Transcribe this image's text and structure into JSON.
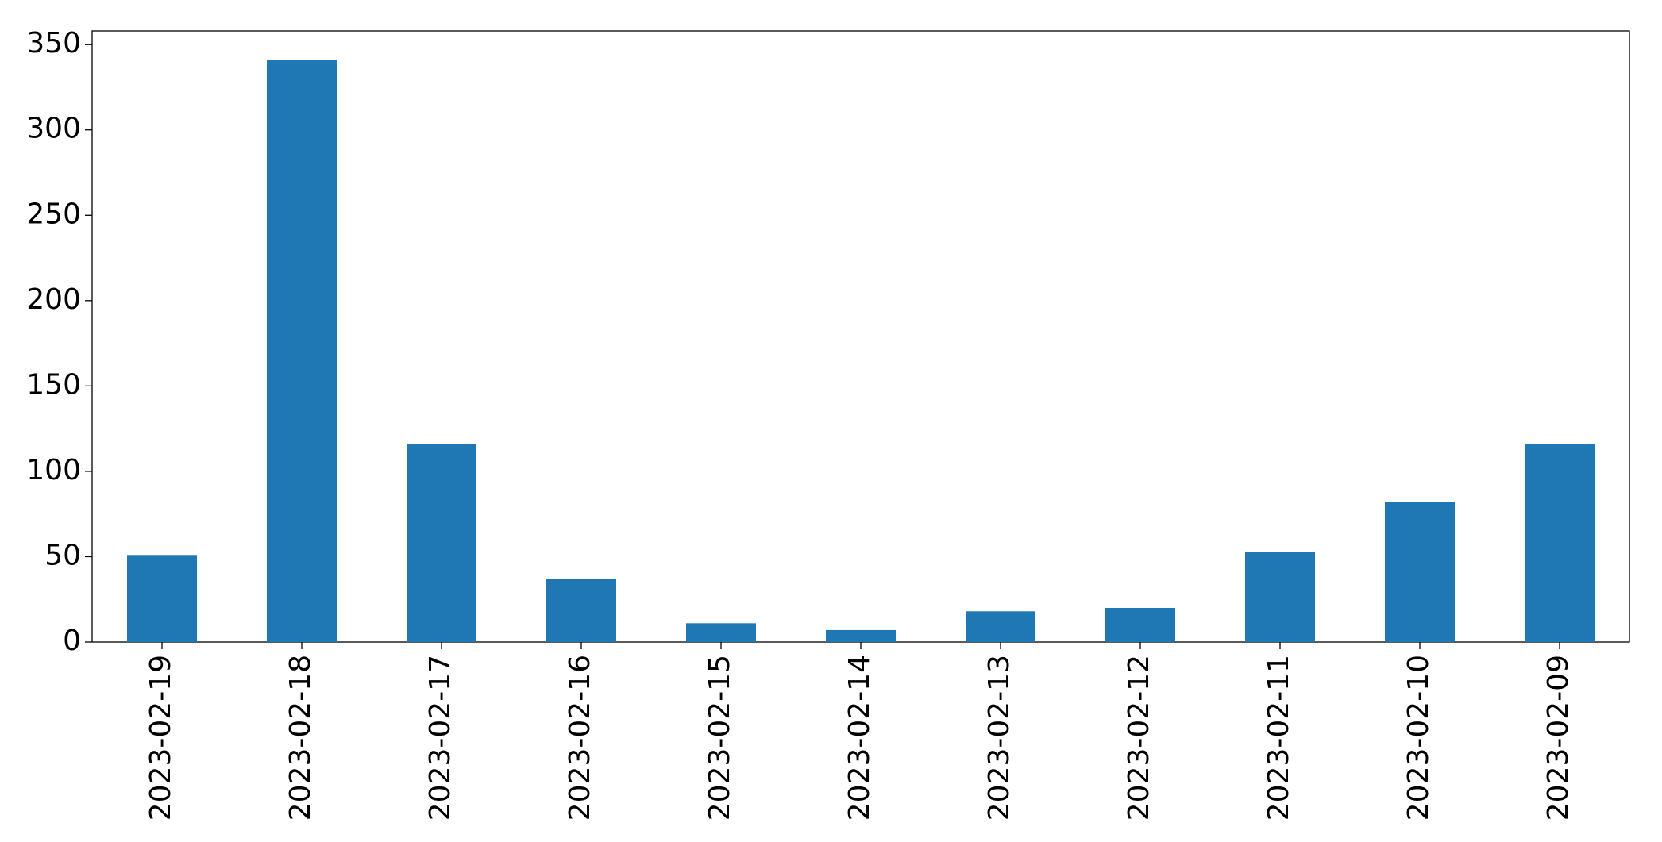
{
  "chart_data": {
    "type": "bar",
    "categories": [
      "2023-02-19",
      "2023-02-18",
      "2023-02-17",
      "2023-02-16",
      "2023-02-15",
      "2023-02-14",
      "2023-02-13",
      "2023-02-12",
      "2023-02-11",
      "2023-02-10",
      "2023-02-09"
    ],
    "values": [
      51,
      341,
      116,
      37,
      11,
      7,
      18,
      20,
      53,
      82,
      116
    ],
    "color": "#1f77b4",
    "ylim": [
      0,
      358
    ],
    "yticks": [
      0,
      50,
      100,
      150,
      200,
      250,
      300,
      350
    ],
    "grid": false
  }
}
